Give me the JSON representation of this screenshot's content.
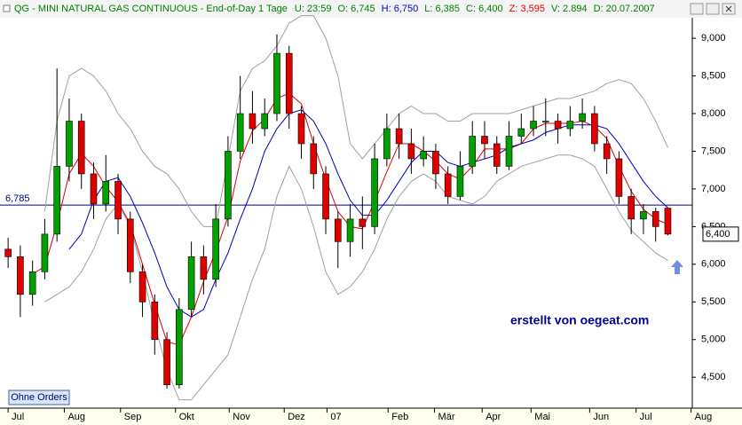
{
  "chart_data": {
    "type": "candlestick",
    "header": {
      "title": "QG - MINI NATURAL GAS CONTINUOUS - End-of-Day 1 Tage",
      "fields": [
        {
          "text": "U: 23:59",
          "color": "#008000"
        },
        {
          "text": "O: 6,745",
          "color": "#008000"
        },
        {
          "text": "H: 6,750",
          "color": "#0000c0"
        },
        {
          "text": "L: 6,385",
          "color": "#008000"
        },
        {
          "text": "C: 6,400",
          "color": "#008000"
        },
        {
          "text": "Z: 3,595",
          "color": "#e00000"
        },
        {
          "text": "V: 2.894",
          "color": "#008000"
        },
        {
          "text": "D: 20.07.2007",
          "color": "#008000"
        }
      ]
    },
    "candles": {
      "open": [
        6.2,
        6.1,
        5.6,
        5.9,
        6.4,
        7.3,
        7.9,
        7.2,
        6.8,
        7.1,
        6.6,
        5.9,
        5.5,
        5.0,
        4.4,
        5.4,
        6.1,
        5.8,
        6.6,
        7.5,
        8.0,
        7.8,
        8.0,
        8.8,
        8.0,
        7.6,
        7.2,
        6.6,
        6.3,
        6.6,
        6.5,
        7.4,
        7.8,
        7.6,
        7.4,
        7.5,
        7.2,
        6.9,
        7.3,
        7.7,
        7.6,
        7.3,
        7.7,
        7.8,
        7.9,
        7.9,
        7.8,
        7.9,
        8.0,
        7.6,
        7.4,
        6.9,
        6.6,
        6.7,
        6.745
      ],
      "high": [
        6.35,
        6.25,
        6.05,
        6.6,
        8.6,
        8.2,
        8.0,
        7.35,
        7.45,
        7.2,
        6.7,
        6.0,
        5.6,
        5.1,
        5.55,
        6.3,
        6.25,
        6.8,
        7.7,
        8.5,
        8.3,
        8.2,
        9.05,
        8.9,
        8.1,
        7.7,
        7.3,
        6.7,
        6.8,
        6.9,
        7.6,
        8.0,
        8.0,
        7.8,
        7.7,
        7.6,
        7.3,
        7.5,
        7.9,
        7.9,
        7.7,
        7.9,
        8.0,
        8.1,
        8.2,
        8.0,
        8.1,
        8.2,
        8.1,
        7.7,
        7.5,
        7.0,
        6.8,
        6.75,
        6.75
      ],
      "low": [
        5.95,
        5.3,
        5.45,
        5.8,
        6.3,
        7.1,
        7.0,
        6.6,
        6.7,
        6.4,
        5.75,
        5.3,
        4.8,
        4.35,
        4.35,
        5.3,
        5.6,
        5.7,
        6.5,
        7.4,
        7.6,
        7.7,
        7.9,
        7.8,
        7.4,
        7.0,
        6.4,
        5.95,
        6.1,
        6.2,
        6.4,
        7.3,
        7.4,
        7.2,
        7.3,
        7.0,
        6.8,
        6.85,
        7.2,
        7.4,
        7.2,
        7.25,
        7.6,
        7.7,
        7.7,
        7.6,
        7.7,
        7.8,
        7.5,
        7.2,
        6.8,
        6.4,
        6.4,
        6.3,
        6.385
      ],
      "close": [
        6.1,
        5.6,
        5.9,
        6.4,
        7.3,
        7.9,
        7.2,
        6.8,
        7.1,
        6.6,
        5.9,
        5.5,
        5.0,
        4.4,
        5.4,
        6.1,
        5.8,
        6.6,
        7.5,
        8.0,
        7.8,
        8.0,
        8.8,
        8.0,
        7.6,
        7.2,
        6.6,
        6.3,
        6.6,
        6.5,
        7.4,
        7.8,
        7.6,
        7.4,
        7.5,
        7.2,
        6.9,
        7.3,
        7.7,
        7.6,
        7.3,
        7.7,
        7.8,
        7.9,
        7.9,
        7.8,
        7.9,
        8.0,
        7.6,
        7.4,
        6.9,
        6.6,
        6.7,
        6.5,
        6.4
      ],
      "up_color": "#00a000",
      "down_color": "#e00000"
    },
    "series": [
      {
        "color": "#e00000",
        "values": [
          null,
          null,
          5.87,
          5.97,
          6.53,
          7.2,
          7.47,
          7.3,
          7.03,
          6.83,
          6.53,
          6.0,
          5.47,
          4.97,
          4.93,
          5.3,
          5.77,
          6.17,
          6.63,
          7.37,
          7.77,
          7.93,
          8.2,
          8.27,
          8.13,
          7.6,
          7.13,
          6.7,
          6.5,
          6.47,
          6.83,
          7.23,
          7.6,
          7.6,
          7.5,
          7.37,
          7.2,
          7.13,
          7.3,
          7.53,
          7.53,
          7.53,
          7.6,
          7.8,
          7.87,
          7.87,
          7.87,
          7.9,
          7.83,
          7.67,
          7.3,
          6.97,
          6.73,
          6.6,
          6.53
        ]
      },
      {
        "color": "#0000c0",
        "values": [
          null,
          null,
          null,
          null,
          null,
          6.2,
          6.4,
          6.85,
          7.1,
          7.15,
          6.9,
          6.55,
          6.15,
          5.7,
          5.4,
          5.3,
          5.4,
          5.8,
          6.15,
          6.6,
          7.0,
          7.5,
          7.8,
          8.0,
          8.05,
          7.9,
          7.6,
          7.2,
          6.85,
          6.65,
          6.65,
          6.85,
          7.1,
          7.35,
          7.5,
          7.5,
          7.35,
          7.3,
          7.35,
          7.4,
          7.45,
          7.55,
          7.6,
          7.65,
          7.75,
          7.8,
          7.85,
          7.85,
          7.85,
          7.8,
          7.6,
          7.35,
          7.1,
          6.9,
          6.75
        ]
      },
      {
        "color": "#a0a0a0",
        "values": [
          null,
          null,
          null,
          6.7,
          7.9,
          8.5,
          8.6,
          8.5,
          8.3,
          8.0,
          7.8,
          7.5,
          7.3,
          7.2,
          7.0,
          6.7,
          6.5,
          6.5,
          7.4,
          8.3,
          8.6,
          8.7,
          8.9,
          9.2,
          9.3,
          9.3,
          9.0,
          8.5,
          7.6,
          7.4,
          7.6,
          7.8,
          8.0,
          8.1,
          8.0,
          8.0,
          7.9,
          7.9,
          8.0,
          8.0,
          8.0,
          8.0,
          8.05,
          8.1,
          8.15,
          8.2,
          8.2,
          8.25,
          8.3,
          8.4,
          8.45,
          8.4,
          8.2,
          7.9,
          7.55
        ]
      },
      {
        "color": "#a0a0a0",
        "values": [
          null,
          null,
          null,
          5.5,
          5.6,
          5.7,
          5.9,
          6.2,
          6.6,
          6.8,
          6.5,
          5.9,
          5.2,
          4.6,
          4.2,
          4.2,
          4.4,
          4.6,
          4.8,
          5.3,
          5.8,
          6.2,
          6.9,
          7.3,
          7.0,
          6.5,
          5.9,
          5.6,
          5.7,
          5.9,
          6.2,
          6.6,
          6.9,
          7.1,
          7.2,
          7.1,
          6.9,
          6.85,
          6.8,
          6.9,
          7.1,
          7.2,
          7.3,
          7.35,
          7.4,
          7.45,
          7.45,
          7.4,
          7.3,
          7.0,
          6.7,
          6.45,
          6.3,
          6.15,
          6.05
        ]
      }
    ],
    "hline": {
      "value": 6.785,
      "label": "6,785",
      "color": "#000080"
    },
    "last_price_label": "6,400",
    "xlim": [
      -0.3,
      56
    ],
    "xticks": [
      {
        "value": 0,
        "label": "Jul"
      },
      {
        "value": 4.6,
        "label": "Aug"
      },
      {
        "value": 9.2,
        "label": "Sep"
      },
      {
        "value": 13.7,
        "label": "Okt"
      },
      {
        "value": 18.1,
        "label": "Nov"
      },
      {
        "value": 22.6,
        "label": "Dez"
      },
      {
        "value": 26.1,
        "label": "07"
      },
      {
        "value": 31.1,
        "label": "Feb"
      },
      {
        "value": 34.9,
        "label": "Mär"
      },
      {
        "value": 38.8,
        "label": "Apr"
      },
      {
        "value": 42.8,
        "label": "Mai"
      },
      {
        "value": 47.6,
        "label": "Jun"
      },
      {
        "value": 51.4,
        "label": "Jul"
      },
      {
        "value": 55.9,
        "label": "Aug"
      }
    ],
    "ylim": [
      4.09,
      9.39
    ],
    "yticks": [
      {
        "value": 4.5,
        "label": "4,500"
      },
      {
        "value": 5.0,
        "label": "5,000"
      },
      {
        "value": 5.5,
        "label": "5,500"
      },
      {
        "value": 6.0,
        "label": "6,000"
      },
      {
        "value": 6.5,
        "label": "6,500"
      },
      {
        "value": 7.0,
        "label": "7,000"
      },
      {
        "value": 7.5,
        "label": "7,500"
      },
      {
        "value": 8.0,
        "label": "8,000"
      },
      {
        "value": 8.5,
        "label": "8,500"
      },
      {
        "value": 9.0,
        "label": "9,000"
      }
    ],
    "watermark": "erstellt von oegeat.com",
    "button": "Ohne Orders"
  }
}
